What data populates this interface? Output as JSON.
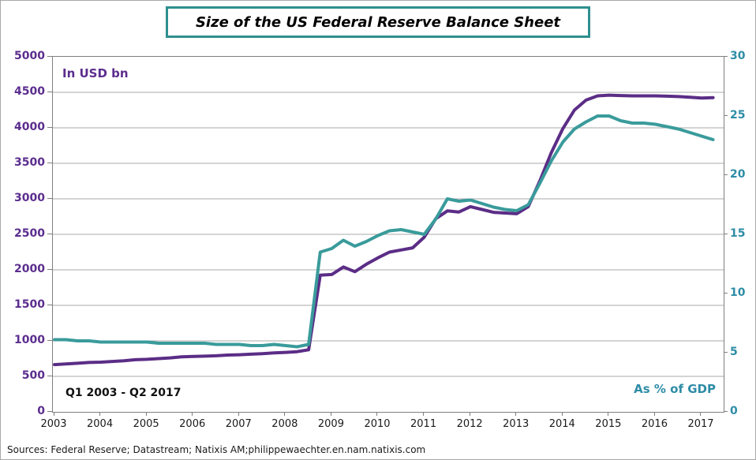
{
  "title": "Size of the US Federal Reserve Balance Sheet",
  "source_line": "Sources: Federal Reserve; Datastream; Natixis AM;philippewaechter.en.nam.natixis.com",
  "colors": {
    "balance_sheet_line": "#5b2d86",
    "gdp_percent_line": "#3a9b9b",
    "left_axis_text": "#5b2d8e",
    "right_axis_text": "#2e8ca6",
    "gridline": "#a8a8a8",
    "plot_border": "#7f7f7f",
    "title_box_border": "#2f8f8f"
  },
  "chart_data": {
    "type": "line",
    "title": "Size of the US Federal Reserve Balance Sheet",
    "period_label": "Q1 2003 - Q2 2017",
    "frequency": "quarterly",
    "x_start": "2003Q1",
    "x_end": "2017Q2",
    "x_tick_labels": [
      "2003",
      "2004",
      "2005",
      "2006",
      "2007",
      "2008",
      "2009",
      "2010",
      "2011",
      "2012",
      "2013",
      "2014",
      "2015",
      "2016",
      "2017"
    ],
    "left_axis": {
      "label": "In USD bn",
      "range": [
        0,
        5000
      ],
      "tick_step": 500,
      "ticks": [
        0,
        500,
        1000,
        1500,
        2000,
        2500,
        3000,
        3500,
        4000,
        4500,
        5000
      ]
    },
    "right_axis": {
      "label": "As % of GDP",
      "range": [
        0,
        30
      ],
      "tick_step": 5,
      "ticks": [
        0,
        5,
        10,
        15,
        20,
        25,
        30
      ]
    },
    "grid": "horizontal",
    "legend_position": "none",
    "series": [
      {
        "name": "Fed balance sheet (USD bn)",
        "axis": "left",
        "color": "#5b2d86",
        "values": [
          665,
          675,
          685,
          695,
          700,
          710,
          720,
          735,
          740,
          750,
          760,
          775,
          780,
          785,
          790,
          800,
          805,
          812,
          820,
          830,
          838,
          848,
          875,
          1925,
          1935,
          2040,
          1975,
          2080,
          2170,
          2250,
          2280,
          2310,
          2460,
          2720,
          2830,
          2815,
          2890,
          2850,
          2810,
          2800,
          2790,
          2890,
          3250,
          3650,
          3990,
          4250,
          4390,
          4450,
          4460,
          4455,
          4450,
          4450,
          4450,
          4445,
          4440,
          4430,
          4420,
          4425
        ]
      },
      {
        "name": "As % of GDP",
        "axis": "right",
        "color": "#3a9b9b",
        "values": [
          6.1,
          6.1,
          6.0,
          6.0,
          5.9,
          5.9,
          5.9,
          5.9,
          5.9,
          5.8,
          5.8,
          5.8,
          5.8,
          5.8,
          5.7,
          5.7,
          5.7,
          5.6,
          5.6,
          5.7,
          5.6,
          5.5,
          5.7,
          13.5,
          13.8,
          14.5,
          14.0,
          14.4,
          14.9,
          15.3,
          15.4,
          15.2,
          15.0,
          16.3,
          18.0,
          17.8,
          17.9,
          17.6,
          17.3,
          17.1,
          17.0,
          17.5,
          19.3,
          21.2,
          22.8,
          23.9,
          24.5,
          25.0,
          25.0,
          24.6,
          24.4,
          24.4,
          24.3,
          24.1,
          23.9,
          23.6,
          23.3,
          23.0
        ]
      }
    ]
  }
}
